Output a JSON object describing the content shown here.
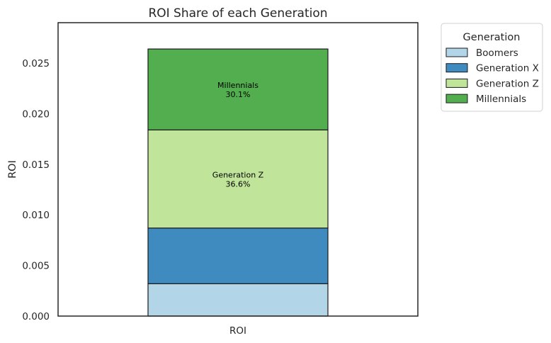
{
  "chart_data": {
    "type": "bar",
    "stacked": true,
    "title": "ROI Share of each Generation",
    "xlabel": "",
    "ylabel": "ROI",
    "categories": [
      "ROI"
    ],
    "ylim": [
      0,
      0.029
    ],
    "yticks": [
      "0.000",
      "0.005",
      "0.010",
      "0.015",
      "0.020",
      "0.025"
    ],
    "ytick_values": [
      0,
      0.005,
      0.01,
      0.015,
      0.02,
      0.025
    ],
    "grid": false,
    "legend": {
      "title": "Generation",
      "placement": "outside-top-right"
    },
    "series": [
      {
        "name": "Boomers",
        "values": [
          0.0032
        ],
        "color": "#b3d5e8"
      },
      {
        "name": "Generation X",
        "values": [
          0.0055
        ],
        "color": "#3f8bbf"
      },
      {
        "name": "Generation Z",
        "values": [
          0.0097
        ],
        "color": "#c0e49a",
        "label_name": "Generation Z",
        "label_pct": "36.6%"
      },
      {
        "name": "Millennials",
        "values": [
          0.008
        ],
        "color": "#52ae4e",
        "label_name": "Millennials",
        "label_pct": "30.1%"
      }
    ]
  }
}
